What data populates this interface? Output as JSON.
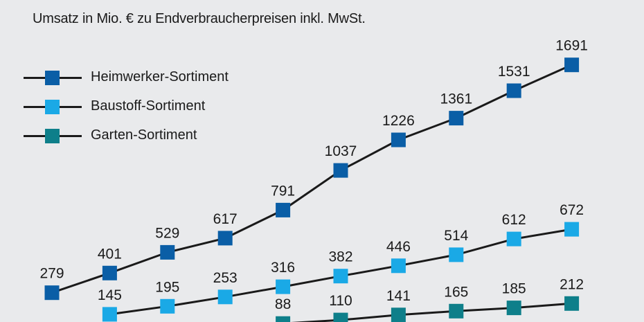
{
  "chart_data": {
    "type": "line",
    "title": "Umsatz in Mio. € zu Endverbraucherpreisen inkl. MwSt.",
    "xlabel": "",
    "ylabel": "",
    "ylim": [
      0,
      1800
    ],
    "grid": false,
    "legend_position": "top-left",
    "series": [
      {
        "name": "Heimwerker-Sortiment",
        "color": "#0a5ea6",
        "values": [
          279,
          401,
          529,
          617,
          791,
          1037,
          1226,
          1361,
          1531,
          1691
        ]
      },
      {
        "name": "Baustoff-Sortiment",
        "color": "#1aa9e6",
        "values": [
          null,
          145,
          195,
          253,
          316,
          382,
          446,
          514,
          612,
          672
        ]
      },
      {
        "name": "Garten-Sortiment",
        "color": "#0e7f8a",
        "values": [
          null,
          null,
          null,
          null,
          88,
          110,
          141,
          165,
          185,
          212
        ]
      }
    ]
  }
}
